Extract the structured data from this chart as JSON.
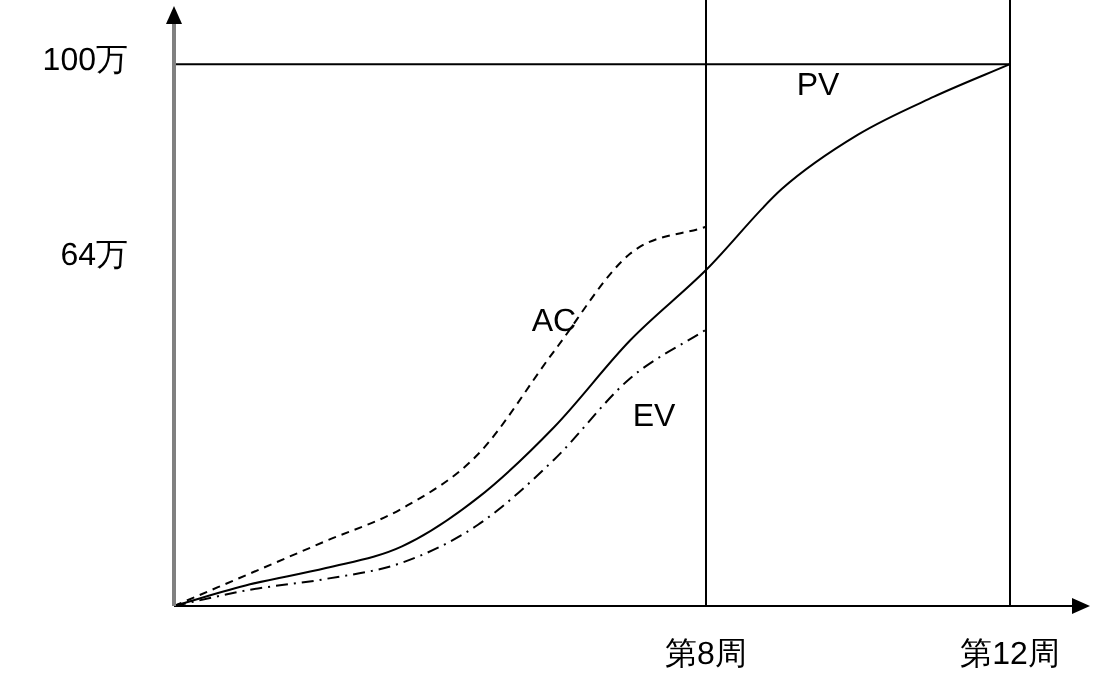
{
  "chart_data": {
    "type": "line",
    "ylim": [
      0,
      110
    ],
    "categories": [
      null,
      null,
      null,
      null,
      null,
      null,
      null,
      "第8周",
      null,
      null,
      null,
      "第12周",
      null
    ],
    "yticks": [
      {
        "value": 64,
        "label": "64万"
      },
      {
        "value": 100,
        "label": "100万"
      }
    ],
    "grid": false,
    "legend": false,
    "marker": "none",
    "ref_lines": [
      {
        "axis": "x",
        "value": "第8周",
        "color": "#000000"
      },
      {
        "axis": "x",
        "value": "第12周",
        "color": "#000000"
      },
      {
        "axis": "y",
        "value": 100,
        "color": "#000000"
      }
    ],
    "series": [
      {
        "name": "AC",
        "color": "#000000",
        "line_style": "dashed",
        "values": [
          0,
          6,
          12,
          18,
          28,
          47,
          65,
          70,
          null,
          null,
          null,
          null,
          null
        ]
      },
      {
        "name": "PV",
        "color": "#000000",
        "line_style": "solid",
        "values": [
          0,
          4,
          7,
          11,
          20,
          33,
          49,
          62,
          77,
          87,
          94,
          100,
          null
        ]
      },
      {
        "name": "EV",
        "color": "#000000",
        "line_style": "dashdot",
        "values": [
          0,
          3,
          5,
          8,
          15,
          27,
          42,
          51,
          null,
          null,
          null,
          null,
          null
        ]
      }
    ]
  }
}
